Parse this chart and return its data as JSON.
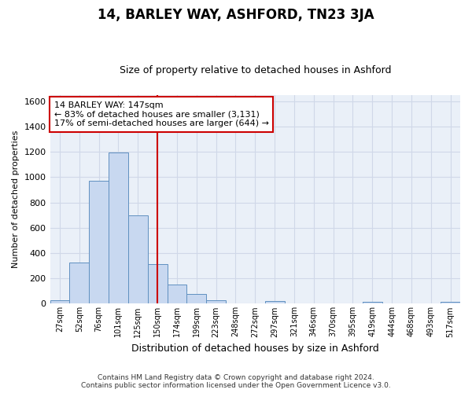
{
  "title": "14, BARLEY WAY, ASHFORD, TN23 3JA",
  "subtitle": "Size of property relative to detached houses in Ashford",
  "xlabel": "Distribution of detached houses by size in Ashford",
  "ylabel": "Number of detached properties",
  "bar_labels": [
    "27sqm",
    "52sqm",
    "76sqm",
    "101sqm",
    "125sqm",
    "150sqm",
    "174sqm",
    "199sqm",
    "223sqm",
    "248sqm",
    "272sqm",
    "297sqm",
    "321sqm",
    "346sqm",
    "370sqm",
    "395sqm",
    "419sqm",
    "444sqm",
    "468sqm",
    "493sqm",
    "517sqm"
  ],
  "bar_values": [
    25,
    325,
    970,
    1195,
    700,
    310,
    150,
    80,
    25,
    0,
    0,
    18,
    0,
    0,
    0,
    0,
    15,
    0,
    0,
    0,
    15
  ],
  "bar_color": "#c8d8f0",
  "bar_edge_color": "#6090c0",
  "vline_x": 5,
  "vline_color": "#cc0000",
  "annotation_text": "14 BARLEY WAY: 147sqm\n← 83% of detached houses are smaller (3,131)\n17% of semi-detached houses are larger (644) →",
  "annotation_box_color": "#ffffff",
  "annotation_box_edge": "#cc0000",
  "ylim": [
    0,
    1650
  ],
  "yticks": [
    0,
    200,
    400,
    600,
    800,
    1000,
    1200,
    1400,
    1600
  ],
  "grid_color": "#d0d8e8",
  "bg_color": "#eaf0f8",
  "footer": "Contains HM Land Registry data © Crown copyright and database right 2024.\nContains public sector information licensed under the Open Government Licence v3.0.",
  "title_fontsize": 12,
  "subtitle_fontsize": 9,
  "ylabel_fontsize": 8,
  "xlabel_fontsize": 9,
  "tick_fontsize": 7,
  "footer_fontsize": 6.5,
  "annot_fontsize": 8
}
